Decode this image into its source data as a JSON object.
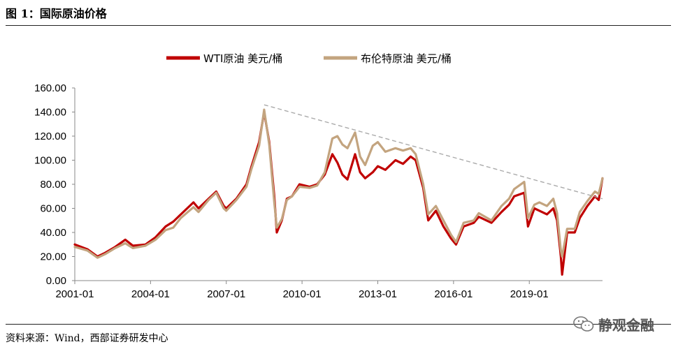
{
  "figure_title": "图 1：国际原油价格",
  "source_text": "资料来源：Wind，西部证券研发中心",
  "watermark_text": "静观金融",
  "colors": {
    "wti": "#c00000",
    "brent": "#c3a47f",
    "trend": "#aaaaaa"
  },
  "chart_data": {
    "type": "line",
    "title": "",
    "xlabel": "",
    "ylabel": "",
    "ylim": [
      0,
      160
    ],
    "yticks": [
      "0.00",
      "20.00",
      "40.00",
      "60.00",
      "80.00",
      "100.00",
      "120.00",
      "140.00",
      "160.00"
    ],
    "xlim": [
      2001.0,
      2021.9
    ],
    "xticks": [
      {
        "label": "2001-01",
        "x": 2001.0
      },
      {
        "label": "2004-01",
        "x": 2004.0
      },
      {
        "label": "2007-01",
        "x": 2007.0
      },
      {
        "label": "2010-01",
        "x": 2010.0
      },
      {
        "label": "2013-01",
        "x": 2013.0
      },
      {
        "label": "2016-01",
        "x": 2016.0
      },
      {
        "label": "2019-01",
        "x": 2019.0
      }
    ],
    "grid": false,
    "legend_position": "top-center",
    "x": [
      2001.0,
      2001.5,
      2001.9,
      2002.2,
      2002.6,
      2003.0,
      2003.3,
      2003.8,
      2004.2,
      2004.6,
      2004.9,
      2005.2,
      2005.7,
      2005.9,
      2006.3,
      2006.6,
      2006.9,
      2007.0,
      2007.4,
      2007.8,
      2008.0,
      2008.3,
      2008.5,
      2008.7,
      2008.9,
      2009.0,
      2009.2,
      2009.4,
      2009.6,
      2009.9,
      2010.3,
      2010.6,
      2010.9,
      2011.2,
      2011.4,
      2011.6,
      2011.8,
      2012.1,
      2012.3,
      2012.5,
      2012.8,
      2013.0,
      2013.3,
      2013.7,
      2014.0,
      2014.3,
      2014.5,
      2014.8,
      2015.0,
      2015.3,
      2015.6,
      2015.9,
      2016.1,
      2016.4,
      2016.8,
      2017.0,
      2017.5,
      2017.9,
      2018.2,
      2018.4,
      2018.8,
      2018.95,
      2019.2,
      2019.4,
      2019.7,
      2019.95,
      2020.1,
      2020.25,
      2020.3,
      2020.5,
      2020.8,
      2021.0,
      2021.3,
      2021.6,
      2021.75,
      2021.9
    ],
    "series": [
      {
        "name": "WTI原油 美元/桶",
        "values": [
          30,
          26,
          20,
          23,
          28,
          34,
          29,
          30,
          36,
          45,
          49,
          55,
          65,
          60,
          68,
          74,
          62,
          60,
          68,
          80,
          95,
          115,
          140,
          115,
          70,
          40,
          50,
          68,
          70,
          80,
          78,
          80,
          88,
          105,
          98,
          88,
          84,
          105,
          90,
          85,
          90,
          95,
          92,
          100,
          97,
          103,
          100,
          77,
          50,
          58,
          45,
          35,
          30,
          45,
          48,
          53,
          48,
          57,
          63,
          70,
          73,
          45,
          60,
          58,
          55,
          60,
          50,
          20,
          5,
          40,
          40,
          52,
          62,
          70,
          67,
          85
        ]
      },
      {
        "name": "布伦特原油 美元/桶",
        "values": [
          28,
          25,
          19,
          22,
          27,
          31,
          27,
          29,
          34,
          42,
          44,
          52,
          61,
          57,
          67,
          73,
          60,
          58,
          67,
          78,
          93,
          112,
          142,
          113,
          65,
          44,
          51,
          67,
          70,
          78,
          77,
          79,
          90,
          118,
          120,
          113,
          110,
          123,
          103,
          96,
          112,
          115,
          107,
          110,
          108,
          110,
          105,
          80,
          55,
          62,
          50,
          38,
          32,
          48,
          50,
          56,
          50,
          62,
          68,
          76,
          82,
          52,
          63,
          65,
          62,
          68,
          56,
          25,
          20,
          43,
          43,
          57,
          66,
          74,
          72,
          85
        ]
      }
    ],
    "trendline": {
      "x": [
        2008.5,
        2021.9
      ],
      "y": [
        146,
        68
      ]
    }
  }
}
